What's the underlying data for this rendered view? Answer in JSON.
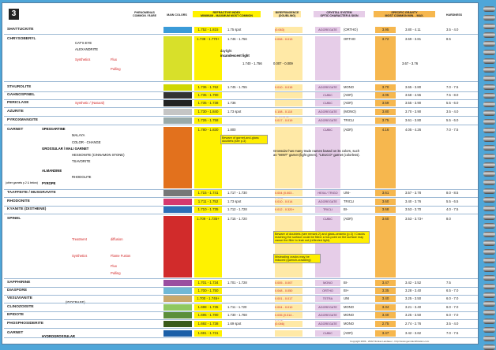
{
  "page_number": "3",
  "headers": {
    "phenomenas": "PHENOMENAS",
    "phenomenas_sub": "COMMON / RARE",
    "main_colors": "MAIN COLORS",
    "ri": "REFRACTIVE INDEX",
    "ri_sub": "MINIMUM - MAXIMUM   MOST COMMON",
    "bir": "BIREFRINGENCE",
    "bir_sub": "(DOUBLING)",
    "cryst": "CRYSTAL SYSTEM",
    "cryst_sub": "OPTIC CHARACTER & SIGN",
    "sg": "SPECIFIC GRAVITY",
    "sg_sub": "MOST COMMON   MIN. - MAX.",
    "hardness": "HARDNESS"
  },
  "rows": [
    {
      "name": "SHATTUCKITE",
      "ri": "1.752 - 1.815",
      "ri2": "1.75 spot",
      "bir": "(0.063)",
      "cryst": "AGGREGATE",
      "optic": "(ORTHO)",
      "sg": "3.95",
      "sgr": "3.80 - 4.11",
      "h": "3.5 - 4.0"
    },
    {
      "name": "CHRYSOBERYL",
      "ri": "1.738 - 1.770+",
      "ri2": "1.746 - 1.756",
      "bir": "0.008 - 0.013",
      "cryst": "",
      "optic": "ORTHO",
      "sg": "3.72",
      "sgr": "3.69 - 3.81",
      "h": "8.5"
    },
    {
      "name": "STAUROLITE",
      "ri": "1.736 - 1.762",
      "ri2": "1.745 - 1.755",
      "bir": "0.010 - 0.015",
      "cryst": "AGGREGATE",
      "optic": "MONO",
      "sg": "3.70",
      "sgr": "3.65 - 3.80",
      "h": "7.0 - 7.5"
    },
    {
      "name": "GAHNOSPINEL",
      "ri": "1.735 - 1.790",
      "ri2": "",
      "bir": "",
      "cryst": "CUBIC",
      "optic": "(ADR)",
      "sg": "4.05",
      "sgr": "3.58 - 4.55",
      "h": "7.5 - 8.0"
    },
    {
      "name": "PERICLASE",
      "ri": "1.735 - 1.738",
      "ri2": "1.736",
      "bir": "",
      "cryst": "CUBIC",
      "optic": "(ADR)",
      "sg": "3.59",
      "sgr": "3.55 - 3.90",
      "h": "5.5 - 6.0"
    },
    {
      "name": "AZURITE",
      "ri": "1.730 - 1.840",
      "ri2": "1.73 spot",
      "bir": "0.108 - 0.110 BLINKING",
      "cryst": "AGGREGATE",
      "optic": "(MONO)",
      "sg": "3.80",
      "sgr": "3.70 - 3.90",
      "h": "3.5 - 4.0"
    },
    {
      "name": "PYROXMANGITE",
      "ri": "1.726 - 1.758",
      "ri2": "",
      "bir": "0.017 - 0.019",
      "cryst": "AGGREGATE",
      "optic": "TRICLI",
      "sg": "3.75",
      "sgr": "3.61 - 3.80",
      "h": "5.5 - 6.0"
    },
    {
      "name": "GARNET",
      "ri": "1.780 - 1.830",
      "ri2": "1.800",
      "bir": "",
      "cryst": "CUBIC",
      "optic": "(ADR)",
      "sg": "4.16",
      "sgr": "4.05 - 4.26",
      "h": "7.0 - 7.5"
    },
    {
      "name": "TAAFFEITE / MUSGRAVITE",
      "ri": "1.715 - 1.741",
      "ri2": "1.717 - 1.730",
      "bir": "0.004 (0.003 - 0.007)",
      "cryst": "HEXA / TRIGO",
      "optic": "UNI-",
      "sg": "3.61",
      "sgr": "3.57 - 3.78",
      "h": "8.0 - 8.5"
    },
    {
      "name": "RHODONITE",
      "ri": "1.711 - 1.752",
      "ri2": "1.73 spot",
      "bir": "0.010 - 0.014",
      "cryst": "AGGREGATE",
      "optic": "TRICLI",
      "sg": "3.60",
      "sgr": "3.40 - 3.76",
      "h": "5.5 - 6.5"
    },
    {
      "name": "KYANITE (DISTHENE)",
      "ri": "1.710 - 1.735",
      "ri2": "1.712 - 1.728",
      "bir": "0.012 - 0.320+",
      "cryst": "TRICLI",
      "optic": "BI-",
      "sg": "3.68",
      "sgr": "3.53 - 3.70",
      "h": "4.0 - 7.5"
    },
    {
      "name": "SPINEL",
      "ri": "1.709 - 1.735+",
      "ri2": "1.715 - 1.720",
      "bir": "",
      "cryst": "CUBIC",
      "optic": "(ADR)",
      "sg": "3.60",
      "sgr": "3.53 - 3.73+",
      "h": "8.0"
    },
    {
      "name": "SAPPHIRINE",
      "ri": "1.701 - 1.734",
      "ri2": "1.701 - 1.728",
      "bir": "0.005 - 0.007",
      "cryst": "MONO",
      "optic": "BI-",
      "sg": "3.47",
      "sgr": "3.42 - 3.52",
      "h": "7.5"
    },
    {
      "name": "DIASPORE",
      "ri": "1.700 - 1.750",
      "ri2": "",
      "bir": "0.048 - 0.050",
      "cryst": "ORTHO",
      "optic": "BI+",
      "sg": "3.35",
      "sgr": "3.28 - 3.40",
      "h": "6.5 - 7.0"
    },
    {
      "name": "VESUVIANITE",
      "ri": "1.700 - 1.746+",
      "ri2": "",
      "bir": "0.001 - 0.017",
      "cryst": "TETRA",
      "optic": "UNI",
      "sg": "3.40",
      "sgr": "3.25 - 3.50",
      "h": "6.0 - 7.0"
    },
    {
      "name": "CLINOZOISITE",
      "ri": "1.698 - 1.735",
      "ri2": "1.711 - 1.720",
      "bir": "0.004 - 0.010",
      "cryst": "AGGREGATE",
      "optic": "MONO",
      "sg": "3.34",
      "sgr": "3.21 - 3.40",
      "h": "6.0 - 7.0"
    },
    {
      "name": "EPIDOTE",
      "ri": "1.695 - 1.780",
      "ri2": "1.730 - 1.768",
      "bir": "0.035 (0.014 - 0.040)",
      "cryst": "AGGREGATE",
      "optic": "MONO",
      "sg": "3.40",
      "sgr": "3.25 - 3.50",
      "h": "6.0 - 7.0"
    },
    {
      "name": "PHOSPHOSIDERITE",
      "ri": "1.692 - 1.738",
      "ri2": "1.69 spot",
      "bir": "(0.046)",
      "cryst": "AGGREGATE",
      "optic": "MONO",
      "sg": "2.75",
      "sgr": "2.74 - 2.76",
      "h": "3.5 - 4.0"
    },
    {
      "name": "GARNET",
      "ri": "1.691 - 1.731",
      "ri2": "",
      "bir": "",
      "cryst": "CUBIC",
      "optic": "(ADR)",
      "sg": "3.47",
      "sgr": "3.42 - 3.62",
      "h": "7.0 - 7.5"
    }
  ],
  "sublabels": {
    "cats_eye": "CAT'S EYE",
    "alexandrite": "ALEXANDRITE",
    "synthetics": "Synthetics",
    "flux": "Flux",
    "pulling": "Pulling",
    "daylight": "daylight",
    "incandescent": "incandescent light",
    "alex_ri": "1.740 - 1.756",
    "alex_bir": "0.007 - 0.009",
    "alex_sg": "3.67 - 3.76",
    "periclase_syn": "Synthetic / (Natural)",
    "spessartine": "SPESSARTINE",
    "malaya": "MALAYA",
    "color_change": "COLOR - CHANGE",
    "grossular": "GROSSULAR / MALI GARNET",
    "hessonite": "HESSONITE (CINNAMON STONE)",
    "tsavorite": "TSAVORITE",
    "almandine": "ALMANDINE",
    "rhodolite": "RHODOLITE",
    "pyrope": "PYROPE",
    "other_garnets": "(other garnets p.2 & below)",
    "treatment": "Treatment",
    "diffusion": "diffusion",
    "spinel_syn": "Synthetics",
    "flame_fusion": "Flame Fusion",
    "spinel_flux": "Flux",
    "spinel_pulling": "Pulling",
    "vesuvianite_alt": "(IDOCRASE)",
    "hydrogrossular": "HYDROGROSSULAR"
  },
  "notes": {
    "garnet_glass": "Beware of garnet-and-glass doublets (see p.3)",
    "grossular_note": "Grossular has many trade names based on its colors, such as \"MINT\" garnet (light green), \"LEUCO\" garnet (colorless).",
    "spinel_doublet": "Beware of doublets (see remark 2) and glass-ceramic (p.3) / Cracks reaching the surface could be filled: a hot-point on the surface may cause the filler to leak out (reflected light).",
    "misleading": "Misleading cracks may be induced (quench-crackling)",
    "daylight_label": "daylight",
    "incandescent_label": "incandescent light"
  },
  "footer": "Copyright 2003 - 2022 Nicolas Landauer - http://www.gemidentification.com",
  "colors": {
    "ri_yellow": "#fff200",
    "bir_peach": "#ffe9a6",
    "cryst_lilac": "#e6cde8",
    "sg_orange": "#f6b74e",
    "background_blue": "#4fa6d8"
  }
}
